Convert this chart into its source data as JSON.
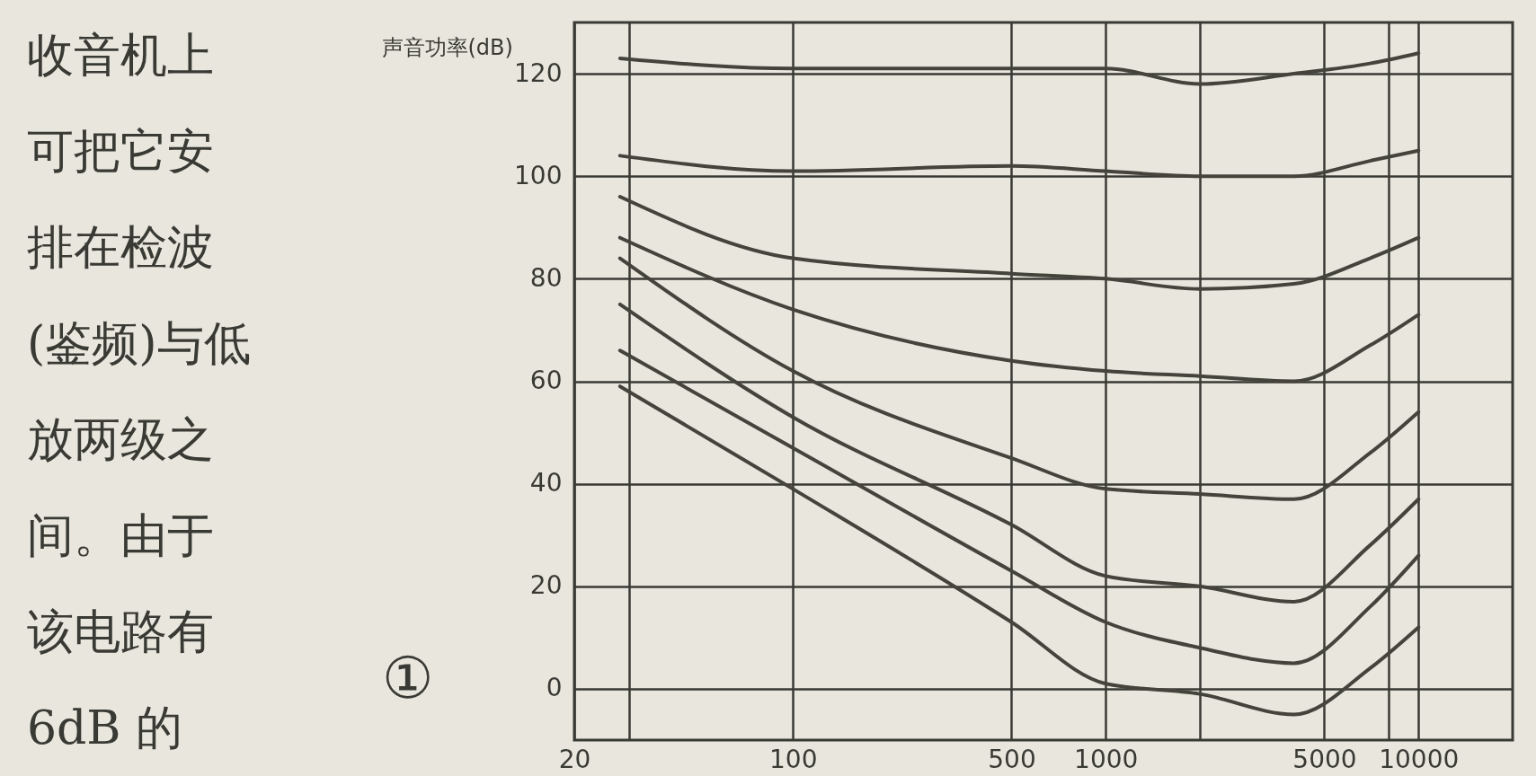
{
  "chart_data": {
    "type": "line",
    "ylabel": "声音功率(dB)",
    "log": "x",
    "grid": true,
    "legend": false,
    "marker": "none",
    "line_style": "solid",
    "x": [
      28,
      100,
      500,
      1000,
      2000,
      4000,
      7000,
      10000
    ],
    "xlim": [
      20,
      20000
    ],
    "xticks": [
      20,
      {
        "value": 30,
        "label": null
      },
      100,
      500,
      1000,
      {
        "value": 2000,
        "label": null
      },
      5000,
      {
        "value": 8000,
        "label": null
      },
      10000
    ],
    "ylim": [
      -10,
      130
    ],
    "yticks": [
      0,
      20,
      40,
      60,
      80,
      100,
      120
    ],
    "series": [
      {
        "color": "#45443c",
        "values": [
          123,
          121,
          121,
          121,
          118,
          120,
          122,
          124
        ]
      },
      {
        "color": "#45443c",
        "values": [
          104,
          101,
          102,
          101,
          100,
          100,
          103,
          105
        ]
      },
      {
        "color": "#45443c",
        "values": [
          96,
          84,
          81,
          80,
          78,
          79,
          84,
          88
        ]
      },
      {
        "color": "#45443c",
        "values": [
          88,
          74,
          64,
          62,
          61,
          60,
          67,
          73
        ]
      },
      {
        "color": "#45443c",
        "values": [
          84,
          62,
          45,
          39,
          38,
          37,
          46,
          54
        ]
      },
      {
        "color": "#45443c",
        "values": [
          75,
          53,
          32,
          22,
          20,
          17,
          28,
          37
        ]
      },
      {
        "color": "#45443c",
        "values": [
          66,
          47,
          23,
          13,
          8,
          5,
          16,
          26
        ]
      },
      {
        "color": "#45443c",
        "values": [
          59,
          39,
          13,
          1,
          -1,
          -5,
          4,
          12
        ]
      }
    ],
    "annotations": [
      "收音机上可把它安排在检波(鉴频)与低放两级之间。由于该电路有 6dB 的",
      "①"
    ]
  }
}
